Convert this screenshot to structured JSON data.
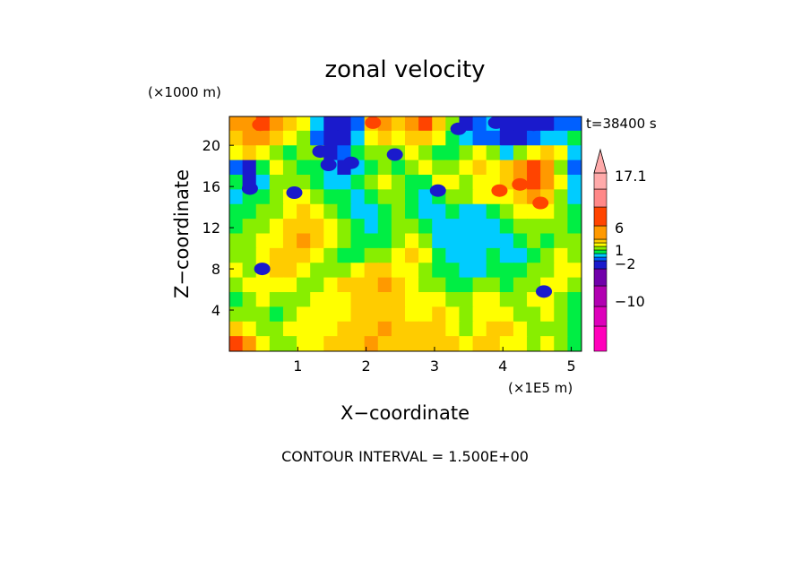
{
  "chart_data": {
    "type": "heatmap",
    "title": "zonal velocity",
    "xlabel": "X−coordinate",
    "ylabel": "Z−coordinate",
    "x_scale_label": "(×1E5 m)",
    "y_scale_label": "(×1000 m)",
    "time_label": "t=38400 s",
    "footer": "CONTOUR INTERVAL = 1.500E+00",
    "xlim": [
      0,
      5.15
    ],
    "ylim": [
      0,
      22.8
    ],
    "x_ticks": [
      1,
      2,
      3,
      4,
      5
    ],
    "y_ticks": [
      4,
      8,
      12,
      16,
      20
    ],
    "colorbar": {
      "levels": [
        {
          "color": "#ff00bb"
        },
        {
          "color": "#dd00bb"
        },
        {
          "color": "#b100b1"
        },
        {
          "color": "#7000aa"
        },
        {
          "color": "#1a1acc"
        },
        {
          "color": "#0060ff"
        },
        {
          "color": "#00ccff"
        },
        {
          "color": "#00ee44"
        },
        {
          "color": "#88ee00"
        },
        {
          "color": "#ffff00"
        },
        {
          "color": "#ffcc00"
        },
        {
          "color": "#ff9900"
        },
        {
          "color": "#ff4400"
        },
        {
          "color": "#ff8888"
        },
        {
          "color": "#ffaaaa"
        }
      ],
      "tick_labels": [
        {
          "value": 17.1,
          "label": "17.1"
        },
        {
          "value": 6,
          "label": "6"
        },
        {
          "value": 1,
          "label": "1"
        },
        {
          "value": -2,
          "label": "−2"
        },
        {
          "value": -10,
          "label": "−10"
        }
      ]
    },
    "field_cells": {
      "grid": [
        26,
        16
      ],
      "description": "approximate color index (0=lowest) per x/z cell read off the contour field, rows top to bottom",
      "rows": [
        [
          11,
          11,
          12,
          11,
          10,
          9,
          6,
          4,
          4,
          5,
          10,
          11,
          10,
          11,
          12,
          10,
          8,
          4,
          5,
          6,
          4,
          4,
          4,
          4,
          5,
          5
        ],
        [
          10,
          11,
          11,
          10,
          9,
          8,
          5,
          4,
          4,
          6,
          9,
          10,
          9,
          10,
          10,
          9,
          7,
          6,
          5,
          5,
          4,
          4,
          5,
          6,
          6,
          7
        ],
        [
          9,
          10,
          9,
          8,
          7,
          8,
          8,
          4,
          5,
          7,
          8,
          8,
          8,
          9,
          8,
          7,
          7,
          8,
          9,
          8,
          6,
          8,
          9,
          10,
          9,
          6
        ],
        [
          5,
          4,
          7,
          9,
          8,
          7,
          7,
          6,
          4,
          6,
          7,
          8,
          7,
          8,
          9,
          8,
          8,
          9,
          10,
          9,
          10,
          11,
          12,
          11,
          8,
          5
        ],
        [
          7,
          4,
          6,
          8,
          8,
          8,
          7,
          6,
          6,
          7,
          8,
          9,
          8,
          7,
          7,
          9,
          9,
          8,
          9,
          9,
          10,
          11,
          12,
          11,
          9,
          6
        ],
        [
          6,
          7,
          7,
          8,
          9,
          9,
          8,
          7,
          7,
          6,
          7,
          8,
          8,
          7,
          6,
          7,
          8,
          8,
          9,
          9,
          9,
          10,
          11,
          10,
          8,
          6
        ],
        [
          7,
          7,
          8,
          8,
          9,
          10,
          9,
          8,
          7,
          6,
          6,
          7,
          8,
          7,
          6,
          6,
          7,
          6,
          6,
          7,
          8,
          9,
          9,
          9,
          8,
          7
        ],
        [
          7,
          8,
          8,
          9,
          10,
          10,
          10,
          9,
          8,
          7,
          6,
          7,
          8,
          8,
          7,
          6,
          6,
          6,
          6,
          6,
          7,
          8,
          8,
          8,
          8,
          7
        ],
        [
          8,
          8,
          9,
          9,
          10,
          11,
          10,
          9,
          8,
          7,
          7,
          7,
          8,
          9,
          8,
          6,
          6,
          6,
          6,
          6,
          6,
          7,
          8,
          7,
          8,
          8
        ],
        [
          8,
          8,
          9,
          10,
          10,
          10,
          9,
          8,
          7,
          7,
          8,
          8,
          9,
          10,
          9,
          7,
          6,
          6,
          6,
          7,
          6,
          6,
          7,
          8,
          9,
          8
        ],
        [
          9,
          8,
          9,
          10,
          10,
          9,
          8,
          8,
          8,
          9,
          10,
          10,
          9,
          9,
          8,
          7,
          7,
          6,
          6,
          7,
          7,
          7,
          8,
          8,
          9,
          9
        ],
        [
          8,
          9,
          9,
          9,
          9,
          8,
          8,
          9,
          10,
          10,
          10,
          11,
          10,
          9,
          8,
          8,
          7,
          7,
          8,
          8,
          7,
          8,
          8,
          9,
          9,
          8
        ],
        [
          7,
          8,
          9,
          8,
          8,
          8,
          9,
          9,
          9,
          10,
          10,
          10,
          10,
          9,
          9,
          9,
          8,
          8,
          9,
          9,
          8,
          8,
          9,
          9,
          8,
          7
        ],
        [
          8,
          8,
          8,
          7,
          8,
          9,
          9,
          9,
          9,
          10,
          10,
          10,
          10,
          9,
          9,
          10,
          9,
          8,
          9,
          9,
          9,
          8,
          8,
          9,
          8,
          7
        ],
        [
          10,
          9,
          8,
          8,
          9,
          9,
          9,
          9,
          10,
          10,
          10,
          11,
          10,
          10,
          10,
          10,
          9,
          8,
          9,
          10,
          10,
          9,
          8,
          8,
          8,
          7
        ],
        [
          12,
          11,
          9,
          8,
          8,
          9,
          9,
          10,
          10,
          10,
          11,
          10,
          10,
          10,
          10,
          10,
          10,
          9,
          10,
          10,
          9,
          9,
          8,
          9,
          8,
          7
        ]
      ]
    },
    "blobs": [
      {
        "x": 0.3,
        "z": 15.8,
        "level": 4
      },
      {
        "x": 1.33,
        "z": 19.4,
        "level": 4
      },
      {
        "x": 1.78,
        "z": 18.3,
        "level": 4
      },
      {
        "x": 2.42,
        "z": 19.1,
        "level": 4
      },
      {
        "x": 1.45,
        "z": 18.1,
        "level": 4
      },
      {
        "x": 3.05,
        "z": 15.6,
        "level": 4
      },
      {
        "x": 4.45,
        "z": 22.0,
        "level": 4
      },
      {
        "x": 3.9,
        "z": 22.2,
        "level": 4
      },
      {
        "x": 0.95,
        "z": 15.4,
        "level": 4
      },
      {
        "x": 0.48,
        "z": 8.0,
        "level": 4
      },
      {
        "x": 4.6,
        "z": 5.8,
        "level": 4
      },
      {
        "x": 3.35,
        "z": 21.6,
        "level": 4
      },
      {
        "x": 3.95,
        "z": 15.6,
        "level": 12
      },
      {
        "x": 4.25,
        "z": 16.2,
        "level": 12
      },
      {
        "x": 0.45,
        "z": 22.0,
        "level": 12
      },
      {
        "x": 2.1,
        "z": 22.2,
        "level": 12
      },
      {
        "x": 4.55,
        "z": 14.4,
        "level": 12
      }
    ]
  }
}
